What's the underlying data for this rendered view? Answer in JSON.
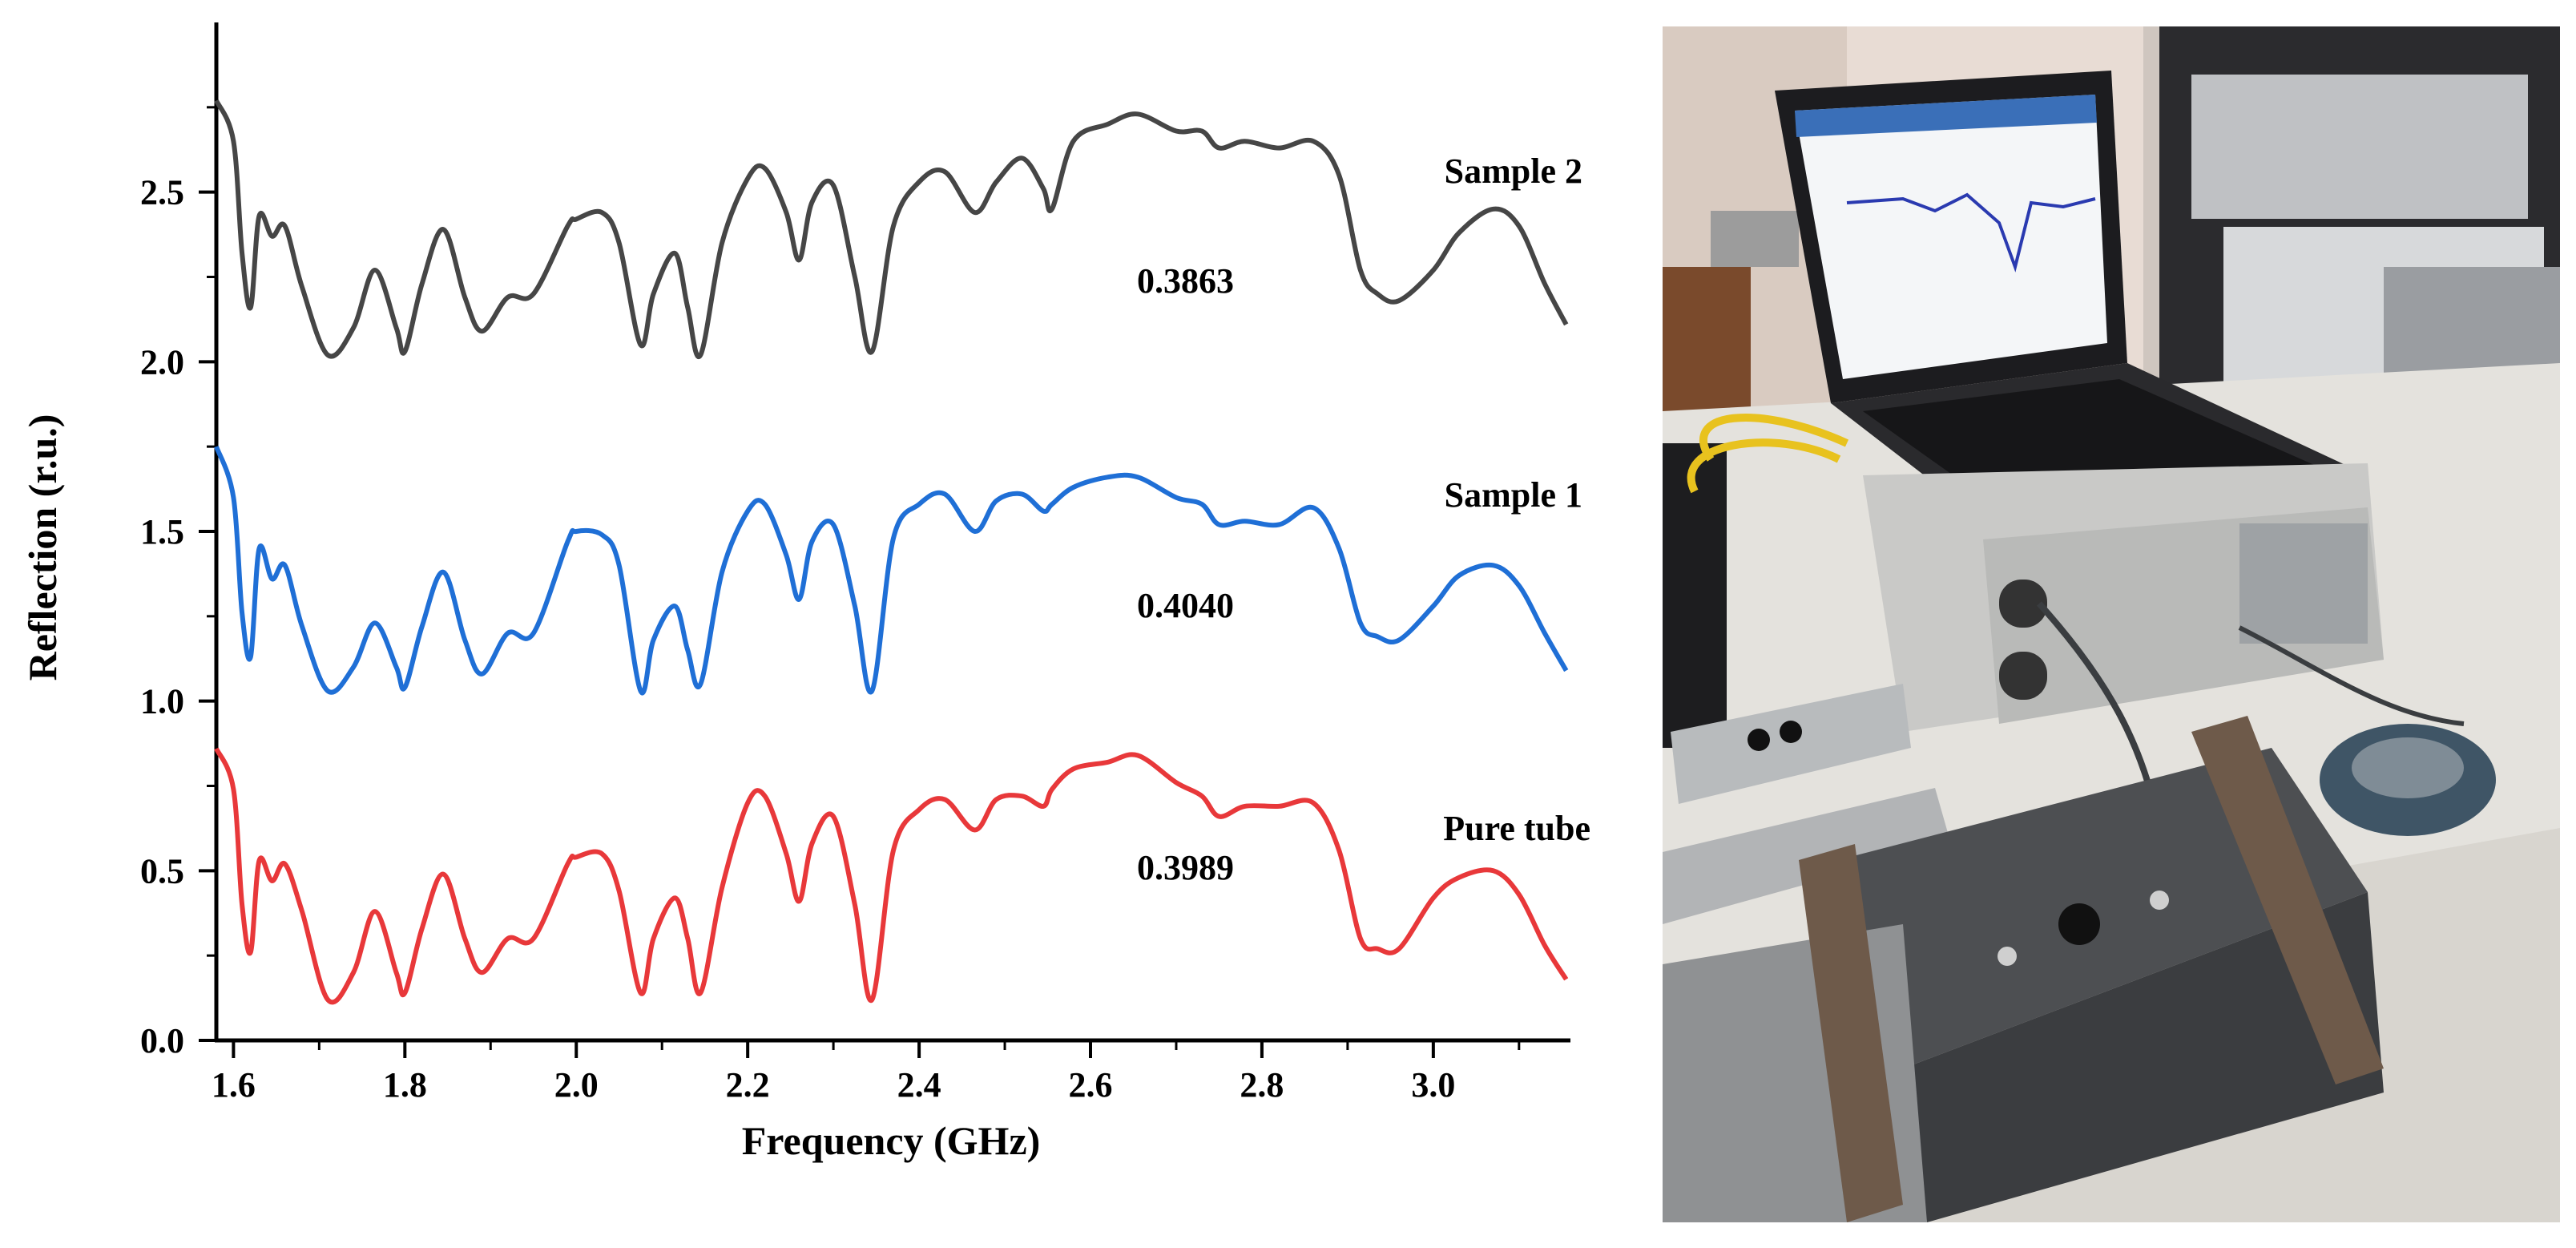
{
  "chart_data": {
    "type": "line",
    "title": "",
    "xlabel": "Frequency (GHz)",
    "ylabel": "Reflection (r.u.)",
    "xlim": [
      1.58,
      3.16
    ],
    "ylim": [
      0.0,
      3.0
    ],
    "xticks": [
      1.6,
      1.8,
      2.0,
      2.2,
      2.4,
      2.6,
      2.8,
      3.0
    ],
    "xtick_labels": [
      "1.6",
      "1.8",
      "2.0",
      "2.2",
      "2.4",
      "2.6",
      "2.8",
      "3.0"
    ],
    "yticks": [
      0.0,
      0.5,
      1.0,
      1.5,
      2.0,
      2.5
    ],
    "ytick_labels": [
      "0.0",
      "0.5",
      "1.0",
      "1.5",
      "2.0",
      "2.5"
    ],
    "grid": false,
    "x": [
      1.58,
      1.6,
      1.61,
      1.62,
      1.63,
      1.645,
      1.66,
      1.68,
      1.71,
      1.74,
      1.765,
      1.79,
      1.8,
      1.82,
      1.845,
      1.87,
      1.89,
      1.92,
      1.95,
      1.99,
      2.0,
      2.03,
      2.05,
      2.075,
      2.09,
      2.115,
      2.13,
      2.145,
      2.17,
      2.2,
      2.22,
      2.245,
      2.26,
      2.275,
      2.3,
      2.325,
      2.345,
      2.37,
      2.4,
      2.43,
      2.465,
      2.49,
      2.52,
      2.545,
      2.555,
      2.58,
      2.62,
      2.655,
      2.7,
      2.73,
      2.75,
      2.78,
      2.82,
      2.86,
      2.89,
      2.915,
      2.935,
      2.96,
      3.0,
      3.03,
      3.07,
      3.1,
      3.13,
      3.155
    ],
    "series": [
      {
        "name": "Pure tube",
        "color": "#e8383a",
        "annotation": "0.3989",
        "values": [
          0.86,
          0.74,
          0.4,
          0.26,
          0.53,
          0.47,
          0.52,
          0.38,
          0.12,
          0.2,
          0.38,
          0.2,
          0.14,
          0.33,
          0.49,
          0.3,
          0.2,
          0.3,
          0.3,
          0.52,
          0.54,
          0.55,
          0.44,
          0.14,
          0.3,
          0.42,
          0.3,
          0.14,
          0.45,
          0.7,
          0.72,
          0.55,
          0.41,
          0.58,
          0.66,
          0.4,
          0.12,
          0.56,
          0.68,
          0.71,
          0.62,
          0.71,
          0.72,
          0.69,
          0.74,
          0.8,
          0.82,
          0.84,
          0.76,
          0.72,
          0.66,
          0.69,
          0.69,
          0.7,
          0.56,
          0.3,
          0.27,
          0.27,
          0.42,
          0.48,
          0.5,
          0.43,
          0.28,
          0.18
        ]
      },
      {
        "name": "Sample 1",
        "color": "#1f6fd6",
        "annotation": "0.4040",
        "values": [
          1.75,
          1.6,
          1.26,
          1.13,
          1.45,
          1.36,
          1.4,
          1.22,
          1.03,
          1.1,
          1.23,
          1.1,
          1.04,
          1.22,
          1.38,
          1.18,
          1.08,
          1.2,
          1.2,
          1.47,
          1.5,
          1.49,
          1.4,
          1.03,
          1.18,
          1.28,
          1.15,
          1.05,
          1.38,
          1.56,
          1.58,
          1.43,
          1.3,
          1.47,
          1.52,
          1.28,
          1.03,
          1.48,
          1.58,
          1.61,
          1.5,
          1.59,
          1.61,
          1.56,
          1.58,
          1.63,
          1.66,
          1.66,
          1.6,
          1.58,
          1.52,
          1.53,
          1.52,
          1.57,
          1.45,
          1.23,
          1.19,
          1.18,
          1.28,
          1.37,
          1.4,
          1.34,
          1.2,
          1.09
        ]
      },
      {
        "name": "Sample 2",
        "color": "#464646",
        "annotation": "0.3863",
        "values": [
          2.77,
          2.65,
          2.32,
          2.16,
          2.43,
          2.37,
          2.4,
          2.22,
          2.02,
          2.1,
          2.27,
          2.1,
          2.03,
          2.23,
          2.39,
          2.19,
          2.09,
          2.19,
          2.2,
          2.4,
          2.42,
          2.44,
          2.35,
          2.05,
          2.2,
          2.32,
          2.16,
          2.02,
          2.35,
          2.54,
          2.57,
          2.44,
          2.3,
          2.47,
          2.52,
          2.25,
          2.03,
          2.4,
          2.53,
          2.56,
          2.44,
          2.53,
          2.6,
          2.51,
          2.45,
          2.65,
          2.7,
          2.73,
          2.68,
          2.68,
          2.63,
          2.65,
          2.63,
          2.65,
          2.55,
          2.27,
          2.2,
          2.18,
          2.27,
          2.38,
          2.45,
          2.4,
          2.23,
          2.11
        ]
      }
    ]
  }
}
